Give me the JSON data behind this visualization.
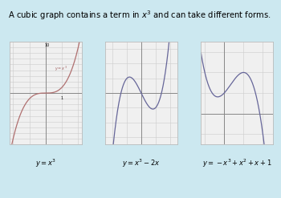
{
  "background_color": "#cce8f0",
  "title_text": "A cubic graph contains a term in $x^3$ and can take different forms.",
  "title_fontsize": 7.2,
  "panel_bg": "#f0f0f0",
  "panel_edge": "#bbbbbb",
  "curve_color_1": "#a06060",
  "curve_color_2": "#555588",
  "curve_color_3": "#555588",
  "axis_color": "#888888",
  "grid_color": "#cccccc",
  "label_fontsize": 6.0,
  "graphs": [
    {
      "label": "$y = x^3$",
      "xlim": [
        -2.2,
        2.2
      ],
      "ylim": [
        -9,
        9
      ],
      "func": "x**3",
      "curve_color": "#b07070"
    },
    {
      "label": "$y = x^3 - 2x$",
      "xlim": [
        -2.5,
        2.5
      ],
      "ylim": [
        -3.5,
        3.5
      ],
      "func": "x**3 - 2*x",
      "curve_color": "#666699"
    },
    {
      "label": "$y = -x^3 + x^2 + x + 1$",
      "xlim": [
        -1.2,
        2.5
      ],
      "ylim": [
        -1.5,
        3.5
      ],
      "func": "-x**3 + x**2 + x + 1",
      "curve_color": "#666699"
    }
  ]
}
